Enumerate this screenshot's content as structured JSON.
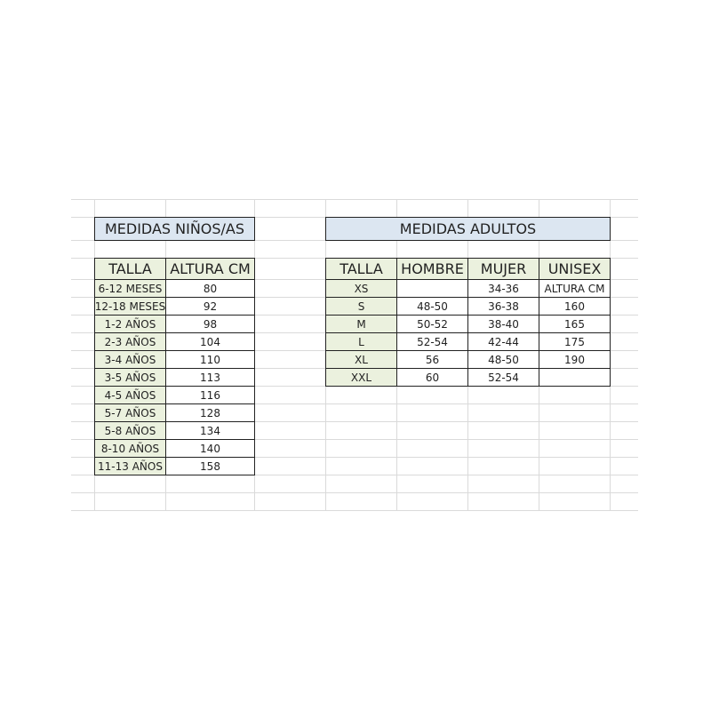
{
  "colors": {
    "title_fill": "#dce6f1",
    "header_fill": "#ebf1de",
    "gridline": "#dadada",
    "border": "#222222"
  },
  "kids": {
    "title": "MEDIDAS NIÑOS/AS",
    "headers": [
      "TALLA",
      "ALTURA CM"
    ],
    "rows": [
      [
        "6-12 MESES",
        "80"
      ],
      [
        "12-18 MESES",
        "92"
      ],
      [
        "1-2 AÑOS",
        "98"
      ],
      [
        "2-3 AÑOS",
        "104"
      ],
      [
        "3-4 AÑOS",
        "110"
      ],
      [
        "3-5 AÑOS",
        "113"
      ],
      [
        "4-5 AÑOS",
        "116"
      ],
      [
        "5-7 AÑOS",
        "128"
      ],
      [
        "5-8 AÑOS",
        "134"
      ],
      [
        "8-10 AÑOS",
        "140"
      ],
      [
        "11-13 AÑOS",
        "158"
      ]
    ]
  },
  "adults": {
    "title": "MEDIDAS ADULTOS",
    "headers": [
      "TALLA",
      "HOMBRE",
      "MUJER",
      "UNISEX"
    ],
    "rows": [
      [
        "XS",
        "",
        "34-36",
        "ALTURA CM"
      ],
      [
        "S",
        "48-50",
        "36-38",
        "160"
      ],
      [
        "M",
        "50-52",
        "38-40",
        "165"
      ],
      [
        "L",
        "52-54",
        "42-44",
        "175"
      ],
      [
        "XL",
        "56",
        "48-50",
        "190"
      ],
      [
        "XXL",
        "60",
        "52-54",
        ""
      ]
    ]
  }
}
